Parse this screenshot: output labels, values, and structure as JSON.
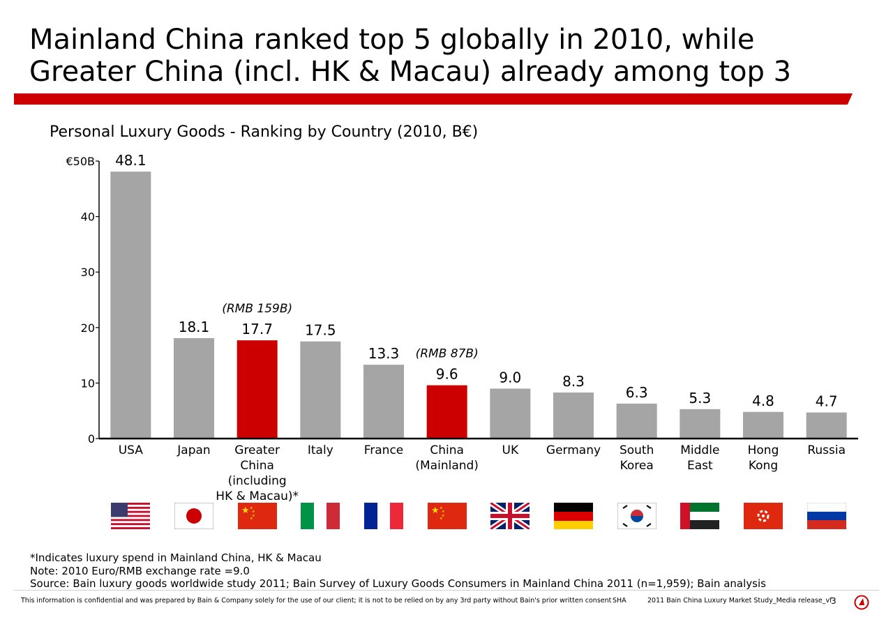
{
  "title_line1": "Mainland China ranked top 5 globally in 2010, while",
  "title_line2": "Greater China (incl. HK & Macau) already among top 3",
  "subtitle": "Personal Luxury Goods - Ranking by Country (2010, B€)",
  "colors": {
    "accent": "#cc0000",
    "bar_default": "#a5a5a5",
    "bar_highlight": "#cc0000"
  },
  "chart_data": {
    "type": "bar",
    "title": "Personal Luxury Goods - Ranking by Country (2010, B€)",
    "categories": [
      [
        "USA"
      ],
      [
        "Japan"
      ],
      [
        "Greater",
        "China",
        "(including",
        "HK & Macau)*"
      ],
      [
        "Italy"
      ],
      [
        "France"
      ],
      [
        "China",
        "(Mainland)"
      ],
      [
        "UK"
      ],
      [
        "Germany"
      ],
      [
        "South",
        "Korea"
      ],
      [
        "Middle",
        "East"
      ],
      [
        "Hong",
        "Kong"
      ],
      [
        "Russia"
      ]
    ],
    "values": [
      48.1,
      18.1,
      17.7,
      17.5,
      13.3,
      9.6,
      9.0,
      8.3,
      6.3,
      5.3,
      4.8,
      4.7
    ],
    "value_labels": [
      "48.1",
      "18.1",
      "17.7",
      "17.5",
      "13.3",
      "9.6",
      "9.0",
      "8.3",
      "6.3",
      "5.3",
      "4.8",
      "4.7"
    ],
    "highlight": [
      false,
      false,
      true,
      false,
      false,
      true,
      false,
      false,
      false,
      false,
      false,
      false
    ],
    "annotations": [
      {
        "category_index": 2,
        "text": "(RMB 159B)"
      },
      {
        "category_index": 5,
        "text": "(RMB 87B)"
      }
    ],
    "yticks": [
      0,
      10,
      20,
      30,
      40,
      50
    ],
    "ytick_labels": [
      "0",
      "10",
      "20",
      "30",
      "40",
      "€50B"
    ],
    "ylim": [
      0,
      50
    ],
    "grid": false,
    "legend": false
  },
  "flags": [
    "usa-flag",
    "japan-flag",
    "china-flag",
    "italy-flag",
    "france-flag",
    "china-flag",
    "uk-flag",
    "germany-flag",
    "south-korea-flag",
    "uae-flag",
    "hong-kong-flag",
    "russia-flag"
  ],
  "notes": {
    "asterisk": "*Indicates luxury spend in Mainland China, HK & Macau",
    "exchange": "Note: 2010 Euro/RMB exchange rate =9.0",
    "source": "Source: Bain luxury goods worldwide study 2011; Bain Survey of Luxury Goods Consumers in Mainland China 2011 (n=1,959); Bain analysis"
  },
  "footer": {
    "confidential": "This information is confidential and was prepared by Bain & Company solely for the use of our client; it is not to be relied on by any 3rd party without Bain's prior written consent",
    "office": "SHA",
    "document": "2011 Bain China Luxury Market Study_Media release_vf",
    "page_number": "3"
  }
}
